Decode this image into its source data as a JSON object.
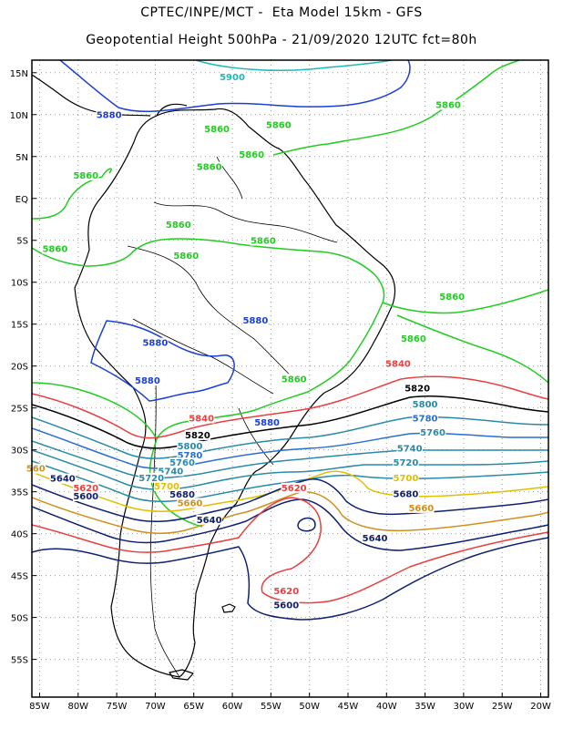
{
  "header": {
    "line1": "CPTEC/INPE/MCT -  Eta Model 15km - GFS",
    "line2": "Geopotential Height 500hPa - 21/09/2020 12UTC fct=80h"
  },
  "axes": {
    "lon_labels": [
      "85W",
      "80W",
      "75W",
      "70W",
      "65W",
      "60W",
      "55W",
      "50W",
      "45W",
      "40W",
      "35W",
      "30W",
      "25W",
      "20W"
    ],
    "lat_labels": [
      "15N",
      "10N",
      "5N",
      "EQ",
      "5S",
      "10S",
      "15S",
      "20S",
      "25S",
      "30S",
      "35S",
      "40S",
      "45S",
      "50S",
      "55S"
    ],
    "lon_values": [
      -85,
      -80,
      -75,
      -70,
      -65,
      -60,
      -55,
      -50,
      -45,
      -40,
      -35,
      -30,
      -25,
      -20
    ],
    "lat_values": [
      15,
      10,
      5,
      0,
      -5,
      -10,
      -15,
      -20,
      -25,
      -30,
      -35,
      -40,
      -45,
      -50,
      -55
    ],
    "lon_range": [
      -86,
      -19
    ],
    "lat_range": [
      16.5,
      -59.5
    ],
    "grid": "dotted"
  },
  "contour_labels": [
    {
      "text": "5900",
      "lon": -60,
      "lat": 14.2,
      "color": "#20b8b8"
    },
    {
      "text": "5880",
      "lon": -76,
      "lat": 9.7,
      "color": "#1c3fd6"
    },
    {
      "text": "5880",
      "lon": -57,
      "lat": -14.8,
      "color": "#1c3fd6"
    },
    {
      "text": "5880",
      "lon": -70,
      "lat": -17.5,
      "color": "#1c3fd6"
    },
    {
      "text": "5880",
      "lon": -71,
      "lat": -22.0,
      "color": "#1c3fd6"
    },
    {
      "text": "5880",
      "lon": -55.5,
      "lat": -27.0,
      "color": "#1c3fd6"
    },
    {
      "text": "5860",
      "lon": -62,
      "lat": 8.0,
      "color": "#22cc22"
    },
    {
      "text": "5860",
      "lon": -63,
      "lat": 3.5,
      "color": "#22cc22"
    },
    {
      "text": "5860",
      "lon": -57.5,
      "lat": 5.0,
      "color": "#22cc22"
    },
    {
      "text": "5860",
      "lon": -54,
      "lat": 8.5,
      "color": "#22cc22"
    },
    {
      "text": "5860",
      "lon": -79,
      "lat": 2.5,
      "color": "#22cc22"
    },
    {
      "text": "5860",
      "lon": -83,
      "lat": -6.3,
      "color": "#22cc22"
    },
    {
      "text": "5860",
      "lon": -67,
      "lat": -3.4,
      "color": "#22cc22"
    },
    {
      "text": "5860",
      "lon": -66,
      "lat": -7.1,
      "color": "#22cc22"
    },
    {
      "text": "5860",
      "lon": -56,
      "lat": -5.3,
      "color": "#22cc22"
    },
    {
      "text": "5860",
      "lon": -31.5,
      "lat": -12.0,
      "color": "#22cc22"
    },
    {
      "text": "5860",
      "lon": -36.5,
      "lat": -17.0,
      "color": "#22cc22"
    },
    {
      "text": "5860",
      "lon": -32,
      "lat": 10.9,
      "color": "#22cc22"
    },
    {
      "text": "5860",
      "lon": -52,
      "lat": -21.8,
      "color": "#22cc22"
    },
    {
      "text": "5840",
      "lon": -38.5,
      "lat": -20.0,
      "color": "#e84040"
    },
    {
      "text": "5840",
      "lon": -64,
      "lat": -26.5,
      "color": "#e84040"
    },
    {
      "text": "5820",
      "lon": -36,
      "lat": -22.9,
      "color": "#000000"
    },
    {
      "text": "5820",
      "lon": -64.5,
      "lat": -28.5,
      "color": "#000000"
    },
    {
      "text": "5800",
      "lon": -35,
      "lat": -24.8,
      "color": "#2a8aa8"
    },
    {
      "text": "5800",
      "lon": -65.5,
      "lat": -29.8,
      "color": "#2a8aa8"
    },
    {
      "text": "5780",
      "lon": -35,
      "lat": -26.5,
      "color": "#2a6fd0"
    },
    {
      "text": "5780",
      "lon": -65.5,
      "lat": -30.9,
      "color": "#2a6fd0"
    },
    {
      "text": "5760",
      "lon": -34,
      "lat": -28.2,
      "color": "#2a8aa8"
    },
    {
      "text": "5760",
      "lon": -66.5,
      "lat": -31.8,
      "color": "#2a8aa8"
    },
    {
      "text": "5740",
      "lon": -37,
      "lat": -30.1,
      "color": "#2a8aa8"
    },
    {
      "text": "5740",
      "lon": -68,
      "lat": -32.8,
      "color": "#2a8aa8"
    },
    {
      "text": "5720",
      "lon": -37.5,
      "lat": -31.8,
      "color": "#2a8aa8"
    },
    {
      "text": "5720",
      "lon": -70.5,
      "lat": -33.6,
      "color": "#2a8aa8"
    },
    {
      "text": "5700",
      "lon": -37.5,
      "lat": -33.6,
      "color": "#e0c000"
    },
    {
      "text": "5700",
      "lon": -68.5,
      "lat": -34.6,
      "color": "#e0c000"
    },
    {
      "text": "5680",
      "lon": -37.5,
      "lat": -35.5,
      "color": "#102070"
    },
    {
      "text": "5680",
      "lon": -66.5,
      "lat": -35.6,
      "color": "#102070"
    },
    {
      "text": "5660",
      "lon": -35.5,
      "lat": -37.2,
      "color": "#d09020"
    },
    {
      "text": "5660",
      "lon": -65.5,
      "lat": -36.6,
      "color": "#d09020"
    },
    {
      "text": "5640",
      "lon": -82,
      "lat": -33.7,
      "color": "#102070"
    },
    {
      "text": "5640",
      "lon": -63,
      "lat": -38.6,
      "color": "#102070"
    },
    {
      "text": "5640",
      "lon": -41.5,
      "lat": -40.8,
      "color": "#102070"
    },
    {
      "text": "5620",
      "lon": -79,
      "lat": -34.8,
      "color": "#e84040"
    },
    {
      "text": "5620",
      "lon": -52,
      "lat": -34.8,
      "color": "#e84040"
    },
    {
      "text": "5620",
      "lon": -53,
      "lat": -47.1,
      "color": "#e84040"
    },
    {
      "text": "5600",
      "lon": -79,
      "lat": -35.8,
      "color": "#102070"
    },
    {
      "text": "5600",
      "lon": -53,
      "lat": -48.8,
      "color": "#102070"
    },
    {
      "text": "560",
      "lon": -85.5,
      "lat": -32.5,
      "color": "#d09020"
    }
  ],
  "colors": {
    "frame": "#000000",
    "coast": "#000000",
    "grid": "#999999"
  }
}
